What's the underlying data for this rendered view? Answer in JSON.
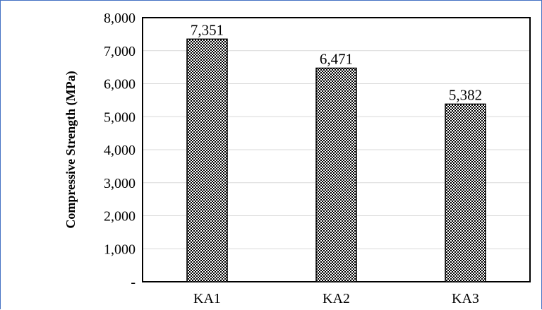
{
  "chart_data": {
    "type": "bar",
    "title": "",
    "xlabel": "",
    "ylabel": "Compressive Strength (MPa)",
    "categories": [
      "KA1",
      "KA2",
      "KA3"
    ],
    "values": [
      7351,
      6471,
      5382
    ],
    "data_labels": [
      "7,351",
      "6,471",
      "5,382"
    ],
    "ylim": [
      0,
      8000
    ],
    "y_ticks": [
      0,
      1000,
      2000,
      3000,
      4000,
      5000,
      6000,
      7000,
      8000
    ],
    "y_tick_labels": [
      "-",
      "1,000",
      "2,000",
      "3,000",
      "4,000",
      "5,000",
      "6,000",
      "7,000",
      "8,000"
    ],
    "grid": true,
    "legend": "none",
    "bar_pattern": "dotted-hatch",
    "colors": {
      "bar_fill": "#ffffff",
      "bar_pattern": "#000000",
      "bar_border": "#000000",
      "gridline": "#d9d9d9",
      "frame": "#4472c4"
    }
  }
}
